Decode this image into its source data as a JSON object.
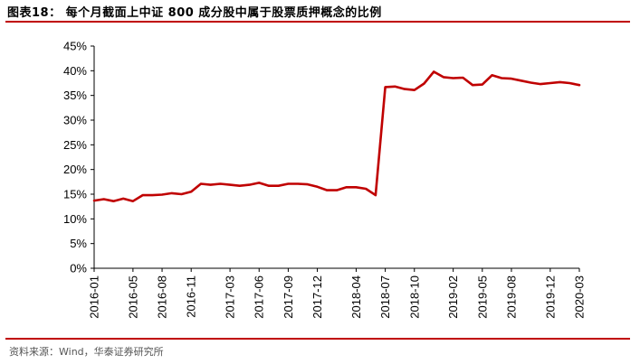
{
  "header": {
    "title": "图表18：  每个月截面上中证 800 成分股中属于股票质押概念的比例"
  },
  "footer": {
    "source": "资料来源：Wind，华泰证券研究所"
  },
  "colors": {
    "accent": "#c00000",
    "series": "#c00000",
    "axis": "#000000"
  },
  "chart_data": {
    "type": "line",
    "title": "",
    "xlabel": "",
    "ylabel": "",
    "ylim": [
      0,
      45
    ],
    "y_ticks": [
      "0%",
      "5%",
      "10%",
      "15%",
      "20%",
      "25%",
      "30%",
      "35%",
      "40%",
      "45%"
    ],
    "x_tick_labels": [
      "2016-01",
      "2016-05",
      "2016-08",
      "2016-11",
      "2017-03",
      "2017-06",
      "2017-09",
      "2017-12",
      "2018-04",
      "2018-07",
      "2018-10",
      "2019-02",
      "2019-05",
      "2019-08",
      "2019-12",
      "2020-03"
    ],
    "grid": false,
    "series": [
      {
        "x": [
          "2016-01",
          "2016-02",
          "2016-03",
          "2016-04",
          "2016-05",
          "2016-06",
          "2016-07",
          "2016-08",
          "2016-09",
          "2016-10",
          "2016-11",
          "2016-12",
          "2017-01",
          "2017-02",
          "2017-03",
          "2017-04",
          "2017-05",
          "2017-06",
          "2017-07",
          "2017-08",
          "2017-09",
          "2017-10",
          "2017-11",
          "2017-12",
          "2018-01",
          "2018-02",
          "2018-03",
          "2018-04",
          "2018-05",
          "2018-06",
          "2018-07",
          "2018-08",
          "2018-09",
          "2018-10",
          "2018-11",
          "2018-12",
          "2019-01",
          "2019-02",
          "2019-03",
          "2019-04",
          "2019-05",
          "2019-06",
          "2019-07",
          "2019-08",
          "2019-09",
          "2019-10",
          "2019-11",
          "2019-12",
          "2020-01",
          "2020-02",
          "2020-03"
        ],
        "values": [
          13.7,
          14.0,
          13.6,
          14.1,
          13.6,
          14.8,
          14.8,
          14.9,
          15.2,
          15.0,
          15.5,
          17.1,
          16.9,
          17.1,
          16.9,
          16.7,
          16.9,
          17.3,
          16.7,
          16.7,
          17.1,
          17.1,
          17.0,
          16.5,
          15.8,
          15.8,
          16.4,
          16.4,
          16.1,
          14.8,
          36.7,
          36.8,
          36.3,
          36.1,
          37.4,
          39.8,
          38.7,
          38.5,
          38.6,
          37.1,
          37.2,
          39.1,
          38.5,
          38.4,
          38.0,
          37.6,
          37.3,
          37.5,
          37.7,
          37.5,
          37.1
        ]
      }
    ]
  }
}
